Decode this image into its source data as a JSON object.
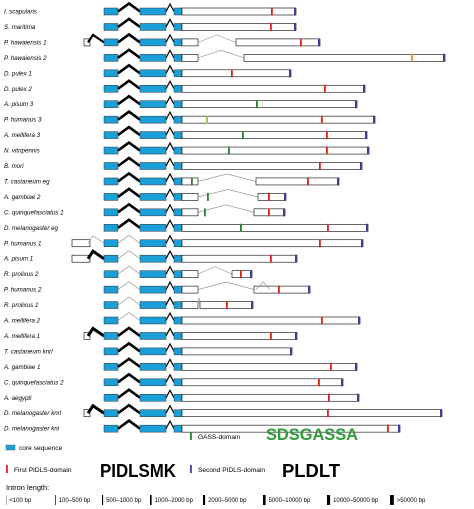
{
  "genes": [
    {
      "label": "I. scapularis",
      "intron": "wide",
      "core": [
        104,
        166
      ],
      "end": 182,
      "red": 271,
      "blue": 294
    },
    {
      "label": "S. maritima",
      "intron": "wide",
      "core": [
        104,
        166
      ],
      "end": 182,
      "red": 270,
      "blue": 294
    },
    {
      "label": "P. hawaiensis 1",
      "intron": "wide",
      "pre": 84,
      "preIntron": "wide",
      "core": [
        104,
        166
      ],
      "end": 182,
      "intron2": {
        "to": 236,
        "thick": false
      },
      "red": 300,
      "blue": 318
    },
    {
      "label": "P. hawaiensis 2",
      "intron": "wide",
      "core": [
        104,
        166
      ],
      "end": 182,
      "intron2": {
        "to": 244,
        "thick": false
      },
      "orange": 411,
      "blue": 443
    },
    {
      "label": "D. pulex 1",
      "intron": "wide",
      "core": [
        104,
        166
      ],
      "end": 182,
      "red": 231,
      "blue": 289
    },
    {
      "label": "D. pulex 2",
      "intron": "wide",
      "core": [
        104,
        166
      ],
      "end": 182,
      "red": 324,
      "blue": 363
    },
    {
      "label": "A. pisum 3",
      "intron": "wide",
      "core": [
        104,
        166
      ],
      "end": 182,
      "green": 256,
      "blue": 355
    },
    {
      "label": "P. humanus 3",
      "intron": "wide",
      "core": [
        104,
        166
      ],
      "end": 182,
      "lightgreen": 206,
      "red": 321,
      "blue": 373
    },
    {
      "label": "A. mellifera 3",
      "intron": "wide",
      "core": [
        104,
        166
      ],
      "end": 182,
      "green": 242,
      "red": 326,
      "blue": 365
    },
    {
      "label": "N. vitripennis",
      "intron": "wide",
      "core": [
        104,
        166
      ],
      "end": 182,
      "green": 228,
      "red": 326,
      "blue": 367
    },
    {
      "label": "B. mori",
      "intron": "wide",
      "core": [
        104,
        166
      ],
      "end": 182,
      "red": 319,
      "blue": 360
    },
    {
      "label": "T. castaneum eg",
      "intron": "wide",
      "core": [
        104,
        166
      ],
      "end": 182,
      "green": 191,
      "intron2": {
        "to": 256,
        "thick": false
      },
      "red": 307,
      "blue": 337
    },
    {
      "label": "A. gambiae 2",
      "intron": "wide",
      "core": [
        104,
        166
      ],
      "end": 182,
      "green": 207,
      "intron2": {
        "to": 258,
        "thick": false
      },
      "red": 268,
      "blue": 284
    },
    {
      "label": "C. quinquefasciatus 1",
      "intron": "wide",
      "core": [
        104,
        166
      ],
      "end": 182,
      "green": 204,
      "intron2": {
        "to": 254,
        "thick": false
      },
      "red": 268,
      "blue": 283
    },
    {
      "label": "D. melanogaster eg",
      "intron": "wide",
      "core": [
        104,
        166
      ],
      "end": 182,
      "green": 240,
      "red": 327,
      "blue": 366
    },
    {
      "label": "P. humanus 1",
      "intron": "thin",
      "pre": 72,
      "preIntron": "thin",
      "core": [
        104,
        166
      ],
      "end": 182,
      "red": 319,
      "blue": 361
    },
    {
      "label": "A. pisum 1",
      "intron": "thin",
      "pre": 72,
      "preIntron": "thick",
      "core": [
        104,
        166
      ],
      "end": 182,
      "red": 270,
      "blue": 295
    },
    {
      "label": "R. prolixus 2",
      "intron": "thin",
      "core": [
        104,
        166
      ],
      "end": 182,
      "intron2": {
        "to": 232,
        "thick": false
      },
      "red": 240,
      "blue": 250
    },
    {
      "label": "P. humanus 2",
      "intron": "thin",
      "core": [
        104,
        166
      ],
      "end": 182,
      "intron2": {
        "to": 254,
        "thick": false
      },
      "intron3": {
        "from": 256,
        "to": 262
      },
      "red": 278,
      "blue": 308
    },
    {
      "label": "R. prolixus 1",
      "intron": "thin",
      "core": [
        104,
        166
      ],
      "end": 182,
      "intron2": {
        "to": 200,
        "thick": false
      },
      "red": 226,
      "blue": 251
    },
    {
      "label": "A. mellifera 2",
      "intron": "thin",
      "core": [
        104,
        166
      ],
      "end": 182,
      "red": 321,
      "blue": 358
    },
    {
      "label": "A. mellifera 1",
      "intron": "wide",
      "pre": 84,
      "preIntron": "thick",
      "core": [
        104,
        166
      ],
      "end": 182,
      "red": 270,
      "blue": 295
    },
    {
      "label": "T. castaneum knrl",
      "intron": "wide",
      "core": [
        104,
        166
      ],
      "end": 182,
      "blue": 290
    },
    {
      "label": "A. gambiae 1",
      "intron": "wide",
      "core": [
        104,
        166
      ],
      "end": 182,
      "red": 330,
      "blue": 355
    },
    {
      "label": "C. quinquefasciatus 2",
      "intron": "wide",
      "core": [
        104,
        166
      ],
      "end": 182,
      "red": 318,
      "blue": 341
    },
    {
      "label": "A. aegypti",
      "intron": "wide",
      "core": [
        104,
        166
      ],
      "end": 182,
      "red": 328,
      "blue": 357
    },
    {
      "label": "D. melanogaster knrl",
      "intron": "wide",
      "pre": 84,
      "preIntron": "thick",
      "core": [
        104,
        166
      ],
      "end": 182,
      "red": 327,
      "blue": 440
    },
    {
      "label": "D. melanogaster kni",
      "intron": "wide",
      "core": [
        104,
        166
      ],
      "end": 182,
      "red": 387,
      "blue": 398
    }
  ],
  "legend": {
    "core": "core sequence",
    "gass": "GASS-domain",
    "pidls1": "First PIDLS-domain",
    "pidls2": "Second PIDLS-domain",
    "logo_gass": "SDSGASSA",
    "logo_pidls1": "PIDLSMK",
    "logo_pidls2": "PLDLT"
  },
  "intron_length": {
    "title": "Intron length:",
    "bins": [
      "<100 bp",
      "100–500 bp",
      "500–1000 bp",
      "1000–2000 bp",
      "2000–5000 bp",
      "5000–10000 bp",
      "10000–50000 bp",
      ">50000 bp"
    ]
  },
  "colors": {
    "core": "#1a9fd8",
    "red": "#d9231d",
    "blue": "#3b3b9e",
    "green": "#2e7d32",
    "lightgreen": "#8bc34a",
    "orange": "#f08a24",
    "gass_logo": "#2e9d3a",
    "pidls_logo": "#000000"
  }
}
